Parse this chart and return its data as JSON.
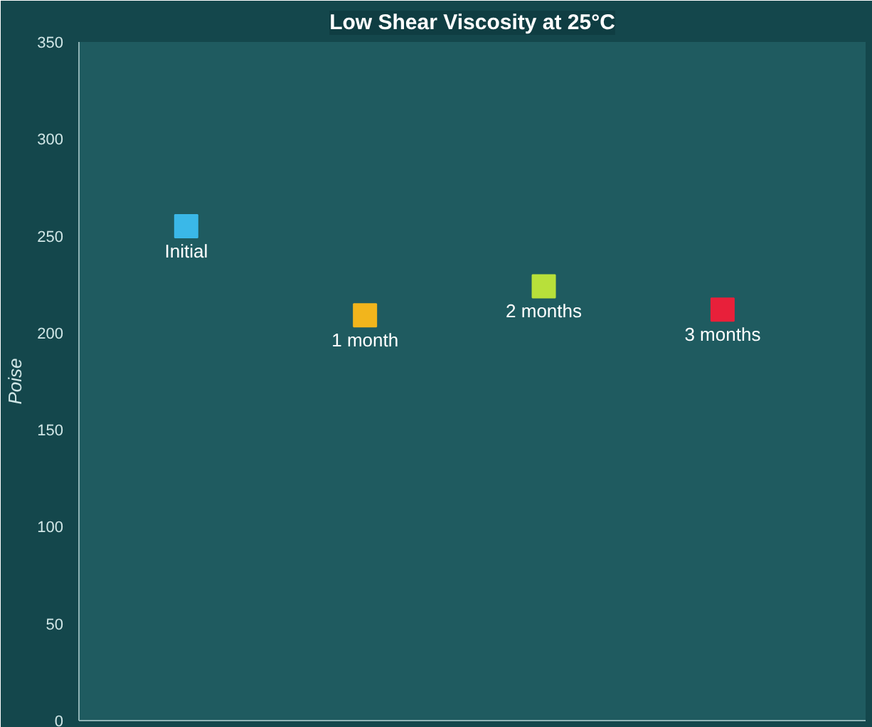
{
  "chart_data": {
    "type": "scatter",
    "title": "Low Shear Viscosity at 25°C",
    "ylabel": "Poise",
    "categories": [
      "Initial",
      "1 month",
      "2 months",
      "3 months"
    ],
    "values": [
      255,
      209,
      224,
      212
    ],
    "colors": [
      "#3ab8e8",
      "#f2b51c",
      "#b8e03a",
      "#e8203a"
    ],
    "marker": "square",
    "ylim": [
      0,
      350
    ],
    "yticks": [
      0,
      50,
      100,
      150,
      200,
      250,
      300,
      350
    ]
  }
}
